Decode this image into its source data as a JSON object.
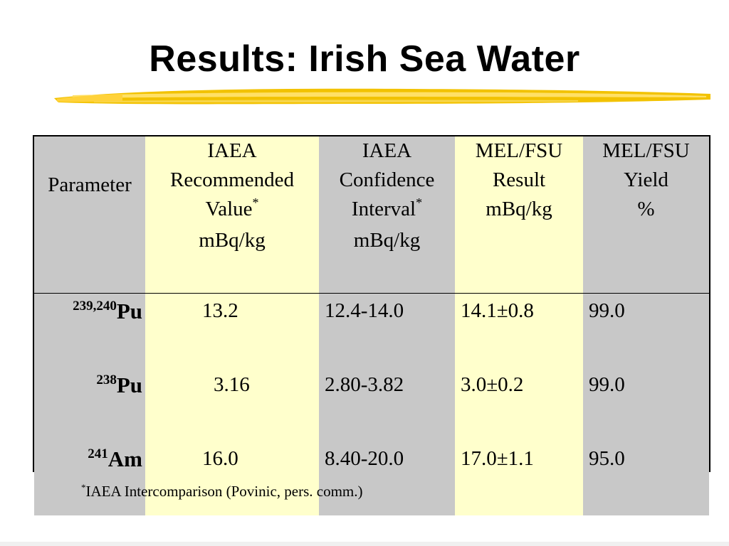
{
  "title": "Results: Irish Sea Water",
  "table": {
    "header": {
      "parameter": "Parameter",
      "col1": [
        "IAEA",
        "Recommended",
        "Value",
        "mBq/kg"
      ],
      "col2": [
        "IAEA",
        "Confidence",
        "Interval",
        "mBq/kg"
      ],
      "col3": [
        "MEL/FSU",
        "Result",
        "mBq/kg"
      ],
      "col4": [
        "MEL/FSU",
        "Yield",
        "%"
      ],
      "asterisk": "*"
    },
    "rows": [
      {
        "mass": "239,240",
        "element": "Pu",
        "recommended": "13.2",
        "interval": "12.4-14.0",
        "result": "14.1±0.8",
        "yield": "99.0"
      },
      {
        "mass": "238",
        "element": "Pu",
        "recommended": "3.16",
        "interval": "2.80-3.82",
        "result": "3.0±0.2",
        "yield": "99.0"
      },
      {
        "mass": "241",
        "element": "Am",
        "recommended": "16.0",
        "interval": "8.40-20.0",
        "result": "17.0±1.1",
        "yield": "95.0"
      }
    ]
  },
  "footnote": {
    "marker": "*",
    "text": "IAEA Intercomparison (Povinic, pers. comm.)"
  },
  "colors": {
    "gray": "#c8c8c8",
    "yellow": "#ffffcc",
    "brush": "#f2c200"
  }
}
